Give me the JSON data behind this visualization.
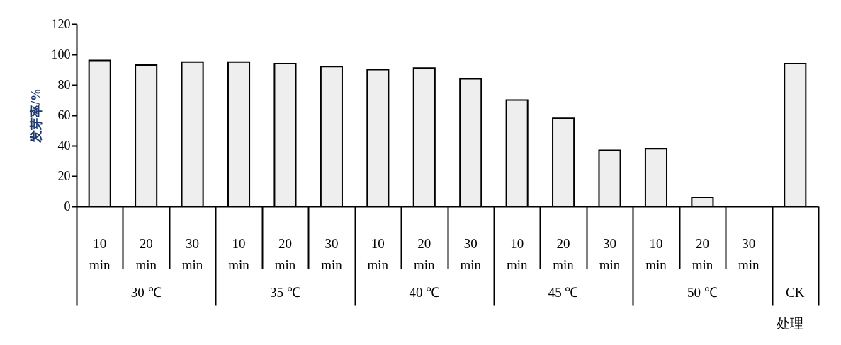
{
  "chart_data": {
    "type": "bar",
    "xlabel": "处理",
    "ylabel": "发芽率/%",
    "categories": [
      "10 min",
      "20 min",
      "30 min",
      "10 min",
      "20 min",
      "30 min",
      "10 min",
      "20 min",
      "30 min",
      "10 min",
      "20 min",
      "30 min",
      "10 min",
      "20 min",
      "30 min",
      null
    ],
    "values": [
      96,
      93,
      95,
      95,
      94,
      92,
      90,
      91,
      84,
      70,
      58,
      37,
      38,
      6,
      null,
      94
    ],
    "color": "#eeeeee",
    "ylim": [
      0,
      120
    ],
    "yticks": [
      0,
      20,
      40,
      60,
      80,
      100,
      120
    ],
    "grid": false,
    "annotations": [
      "30 ℃",
      "35 ℃",
      "40 ℃",
      "45 ℃",
      "50 ℃",
      "CK"
    ]
  }
}
